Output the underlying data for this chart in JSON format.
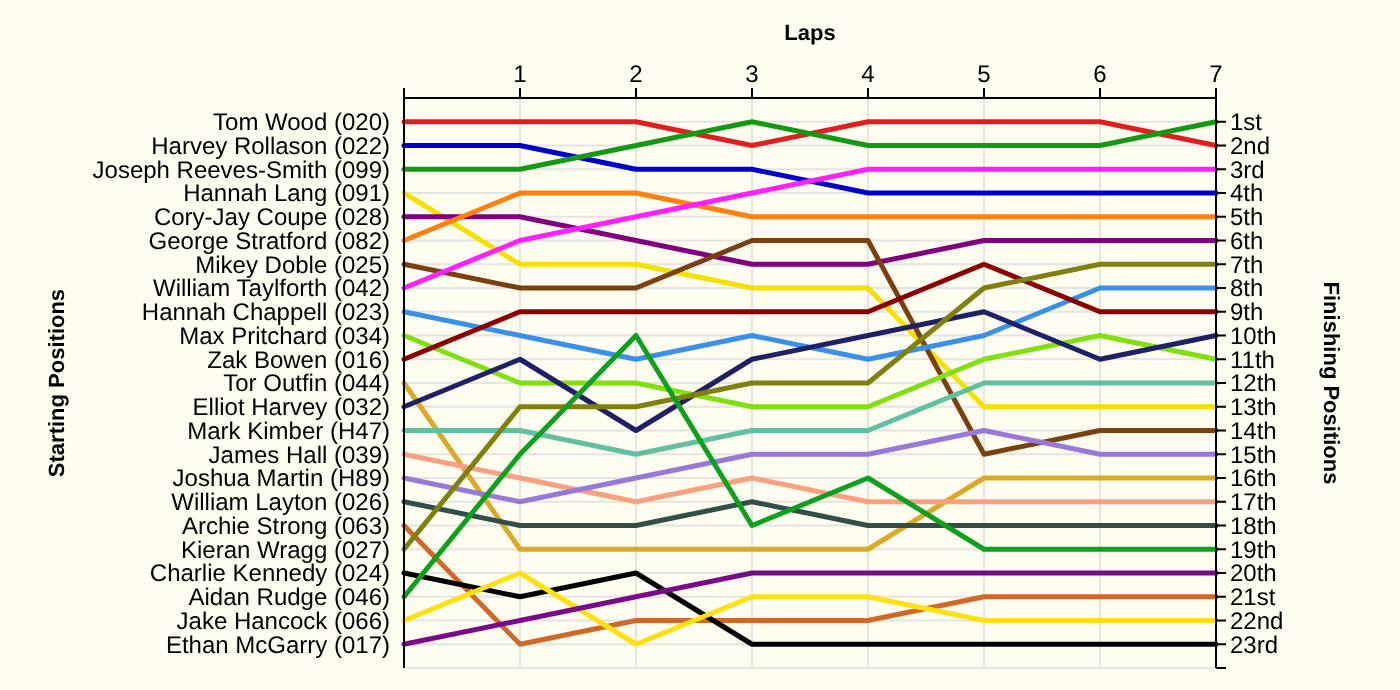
{
  "chart_data": {
    "type": "line",
    "xlabel": "Laps",
    "legend_title": "Starting Positions",
    "ylabel": "Finishing Positions",
    "x": [
      0,
      1,
      2,
      3,
      4,
      5,
      6,
      7
    ],
    "xlim": [
      0,
      7
    ],
    "xticks": [
      {
        "value": 0,
        "label": null
      },
      1,
      2,
      3,
      4,
      5,
      6,
      7
    ],
    "ylim": [
      24,
      0
    ],
    "yticks": [
      {
        "value": 1,
        "label": "1st"
      },
      {
        "value": 2,
        "label": "2nd"
      },
      {
        "value": 3,
        "label": "3rd"
      },
      {
        "value": 4,
        "label": "4th"
      },
      {
        "value": 5,
        "label": "5th"
      },
      {
        "value": 6,
        "label": "6th"
      },
      {
        "value": 7,
        "label": "7th"
      },
      {
        "value": 8,
        "label": "8th"
      },
      {
        "value": 9,
        "label": "9th"
      },
      {
        "value": 10,
        "label": "10th"
      },
      {
        "value": 11,
        "label": "11th"
      },
      {
        "value": 12,
        "label": "12th"
      },
      {
        "value": 13,
        "label": "13th"
      },
      {
        "value": 14,
        "label": "14th"
      },
      {
        "value": 15,
        "label": "15th"
      },
      {
        "value": 16,
        "label": "16th"
      },
      {
        "value": 17,
        "label": "17th"
      },
      {
        "value": 18,
        "label": "18th"
      },
      {
        "value": 19,
        "label": "19th"
      },
      {
        "value": 20,
        "label": "20th"
      },
      {
        "value": 21,
        "label": "21st"
      },
      {
        "value": 22,
        "label": "22nd"
      },
      {
        "value": 23,
        "label": "23rd"
      },
      {
        "value": 24,
        "label": null
      }
    ],
    "grid": true,
    "legend": "left",
    "series": [
      {
        "name": "Tom Wood (020)",
        "color": "#e02020",
        "values": [
          1,
          1,
          1,
          2,
          1,
          1,
          1,
          2
        ]
      },
      {
        "name": "Harvey Rollason (022)",
        "color": "#0000cc",
        "values": [
          2,
          2,
          3,
          3,
          4,
          4,
          4,
          4
        ]
      },
      {
        "name": "Joseph Reeves-Smith (099)",
        "color": "#139913",
        "values": [
          3,
          3,
          2,
          1,
          2,
          2,
          2,
          1
        ]
      },
      {
        "name": "Hannah Lang (091)",
        "color": "#f5e000",
        "values": [
          4,
          7,
          7,
          8,
          8,
          13,
          13,
          13
        ]
      },
      {
        "name": "Cory-Jay Coupe (028)",
        "color": "#800080",
        "values": [
          5,
          5,
          6,
          7,
          7,
          6,
          6,
          6
        ]
      },
      {
        "name": "George Stratford (082)",
        "color": "#ff8010",
        "values": [
          6,
          4,
          4,
          5,
          5,
          5,
          5,
          5
        ]
      },
      {
        "name": "Mikey Doble (025)",
        "color": "#7a4010",
        "values": [
          7,
          8,
          8,
          6,
          6,
          15,
          14,
          14
        ]
      },
      {
        "name": "William Taylforth (042)",
        "color": "#ff20ff",
        "values": [
          8,
          6,
          5,
          4,
          3,
          3,
          3,
          3
        ]
      },
      {
        "name": "Hannah Chappell (023)",
        "color": "#3890e8",
        "values": [
          9,
          10,
          11,
          10,
          11,
          10,
          8,
          8
        ]
      },
      {
        "name": "Max Pritchard (034)",
        "color": "#80e010",
        "values": [
          10,
          12,
          12,
          13,
          13,
          11,
          10,
          11
        ]
      },
      {
        "name": "Zak Bowen (016)",
        "color": "#8b0000",
        "values": [
          11,
          9,
          9,
          9,
          9,
          7,
          9,
          9
        ]
      },
      {
        "name": "Tor Outfin (044)",
        "color": "#dca828",
        "values": [
          12,
          19,
          19,
          19,
          19,
          16,
          16,
          16
        ]
      },
      {
        "name": "Elliot Harvey (032)",
        "color": "#202068",
        "values": [
          13,
          11,
          14,
          11,
          10,
          9,
          11,
          10
        ]
      },
      {
        "name": "Mark Kimber (H47)",
        "color": "#60c0a0",
        "values": [
          14,
          14,
          15,
          14,
          14,
          12,
          12,
          12
        ]
      },
      {
        "name": "James Hall (039)",
        "color": "#f8a080",
        "values": [
          15,
          16,
          17,
          16,
          17,
          17,
          17,
          17
        ]
      },
      {
        "name": "Joshua Martin (H89)",
        "color": "#9878d8",
        "values": [
          16,
          17,
          16,
          15,
          15,
          14,
          15,
          15
        ]
      },
      {
        "name": "William Layton (026)",
        "color": "#2f4f48",
        "values": [
          17,
          18,
          18,
          17,
          18,
          18,
          18,
          18
        ]
      },
      {
        "name": "Archie Strong (063)",
        "color": "#d06828",
        "values": [
          18,
          23,
          22,
          22,
          22,
          21,
          21,
          21
        ]
      },
      {
        "name": "Kieran Wragg (027)",
        "color": "#808010",
        "values": [
          19,
          13,
          13,
          12,
          12,
          8,
          7,
          7
        ]
      },
      {
        "name": "Charlie Kennedy (024)",
        "color": "#000000",
        "values": [
          20,
          21,
          20,
          23,
          23,
          23,
          23,
          23
        ]
      },
      {
        "name": "Aidan Rudge (046)",
        "color": "#10a020",
        "values": [
          21,
          15,
          10,
          18,
          16,
          19,
          19,
          19
        ]
      },
      {
        "name": "Jake Hancock (066)",
        "color": "#ffe010",
        "values": [
          22,
          20,
          23,
          21,
          21,
          22,
          22,
          22
        ]
      },
      {
        "name": "Ethan McGarry (017)",
        "color": "#7a0a8a",
        "values": [
          23,
          22,
          21,
          20,
          20,
          20,
          20,
          20
        ]
      }
    ]
  }
}
